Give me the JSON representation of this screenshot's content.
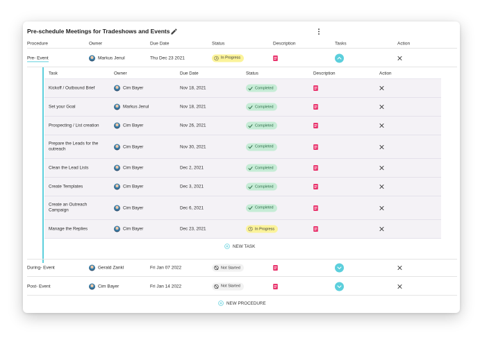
{
  "card": {
    "title": "Pre-schedule Meetings for Tradeshows and Events"
  },
  "headers": [
    "Procedure",
    "Owner",
    "Due Date",
    "Status",
    "Description",
    "Tasks",
    "Action"
  ],
  "task_headers": [
    "Task",
    "Owner",
    "Due Date",
    "Status",
    "Description",
    "Action"
  ],
  "procedures": [
    {
      "name": "Pre- Event",
      "owner": "Markus Jenul",
      "due": "Thu Dec 23 2021",
      "status": "In Progress",
      "expanded": true
    },
    {
      "name": "During- Event",
      "owner": "Gerald Zankl",
      "due": "Fri Jan 07 2022",
      "status": "Not Started",
      "expanded": false
    },
    {
      "name": "Post- Event",
      "owner": "Cim Bayer",
      "due": "Fri Jan 14 2022",
      "status": "Not Started",
      "expanded": false
    }
  ],
  "tasks": [
    {
      "name": "Kickoff / Outbound Brief",
      "owner": "Cim Bayer",
      "due": "Nov 18, 2021",
      "status": "Completed"
    },
    {
      "name": "Set your Goal",
      "owner": "Markus Jenul",
      "due": "Nov 18, 2021",
      "status": "Completed"
    },
    {
      "name": "Prospecting / List creation",
      "owner": "Cim Bayer",
      "due": "Nov 26, 2021",
      "status": "Completed"
    },
    {
      "name": "Prepare the Leads for the outreach",
      "owner": "Cim Bayer",
      "due": "Nov 30, 2021",
      "status": "Completed"
    },
    {
      "name": "Clean the Lead Lists",
      "owner": "Cim Bayer",
      "due": "Dec 2, 2021",
      "status": "Completed"
    },
    {
      "name": "Create Templates",
      "owner": "Cim Bayer",
      "due": "Dec 3, 2021",
      "status": "Completed"
    },
    {
      "name": "Create an Outreach Campaign",
      "owner": "Cim Bayer",
      "due": "Dec 6, 2021",
      "status": "Completed"
    },
    {
      "name": "Manage the Replies",
      "owner": "Cim Bayer",
      "due": "Dec 23, 2021",
      "status": "In Progress"
    }
  ],
  "actions": {
    "new_task": "NEW TASK",
    "new_procedure": "NEW PROCEDURE"
  },
  "colors": {
    "accent": "#5ccfdc",
    "completed": "#c6ecd6",
    "in_progress": "#fbf39a",
    "description": "#e8336c"
  }
}
